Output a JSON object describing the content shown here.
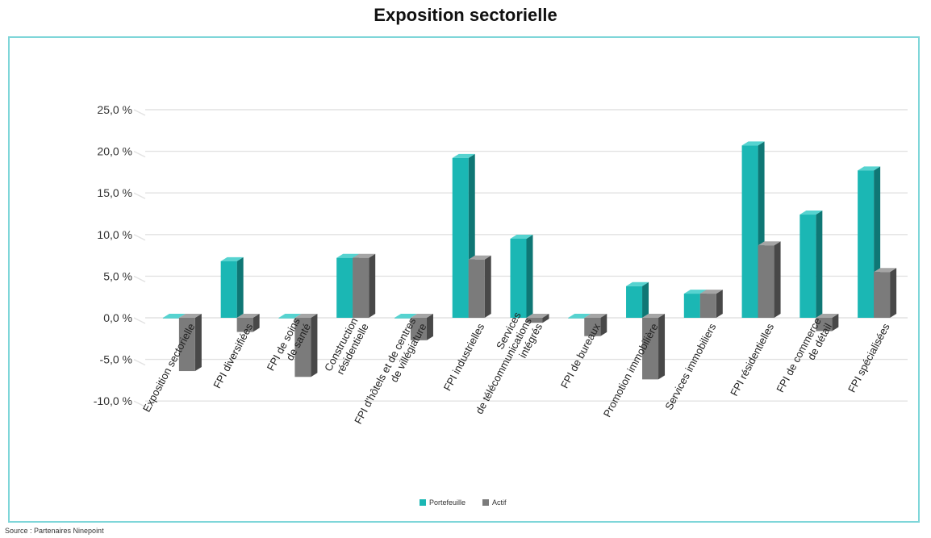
{
  "chart_data": {
    "type": "bar",
    "title": "Exposition sectorielle",
    "xlabel": "",
    "ylabel": "",
    "ylim": [
      -10,
      25
    ],
    "yticks": [
      25,
      20,
      15,
      10,
      5,
      0,
      -5,
      -10
    ],
    "ytick_labels": [
      "25,0 %",
      "20,0 %",
      "15,0 %",
      "10,0 %",
      "5,0 %",
      "0,0 %",
      "-5,0 %",
      "-10,0 %"
    ],
    "grid": true,
    "legend_position": "bottom",
    "categories": [
      [
        "Exposition sectorielle"
      ],
      [
        "FPI diversifiées"
      ],
      [
        "FPI de soins",
        "de santé"
      ],
      [
        "Construction",
        "résidentielle"
      ],
      [
        "FPI d'hôtels et de centres",
        "de villégiature"
      ],
      [
        "FPI industrielles"
      ],
      [
        "Services",
        "de télécommunications",
        "intégrés"
      ],
      [
        "FPI de bureaux"
      ],
      [
        "Promotion immobilière"
      ],
      [
        "Services immobiliers"
      ],
      [
        "FPI résidentielles"
      ],
      [
        "FPI de commerce",
        "de détail"
      ],
      [
        "FPI spécialisées"
      ]
    ],
    "series": [
      {
        "name": "Portefeuille",
        "color": "#1bb7b4",
        "side_color": "#0f7775",
        "top_color": "#56d3d0",
        "values": [
          0.0,
          6.8,
          0.0,
          7.2,
          0.0,
          19.2,
          9.5,
          0.0,
          3.8,
          2.9,
          20.7,
          12.4,
          17.7
        ]
      },
      {
        "name": "Actif",
        "color": "#7b7b7b",
        "side_color": "#484848",
        "top_color": "#a5a5a5",
        "values": [
          -6.4,
          -1.7,
          -7.1,
          7.2,
          -2.7,
          7.0,
          -0.6,
          -2.2,
          -7.4,
          2.9,
          8.7,
          -1.6,
          5.5
        ]
      }
    ]
  },
  "footer": {
    "source": "Source : Partenaires Ninepoint"
  }
}
